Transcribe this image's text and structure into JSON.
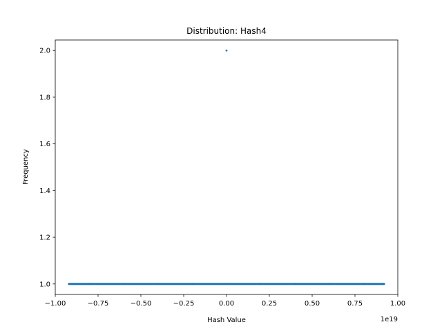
{
  "chart_data": {
    "type": "scatter",
    "title": "Distribution: Hash4",
    "xlabel": "Hash Value",
    "ylabel": "Frequency",
    "x_offset_label": "1e19",
    "xlim": [
      -1.0,
      1.0
    ],
    "ylim": [
      0.955,
      2.045
    ],
    "x_ticks": [
      -1.0,
      -0.75,
      -0.5,
      -0.25,
      0.0,
      0.25,
      0.5,
      0.75,
      1.0
    ],
    "x_tick_labels": [
      "−1.00",
      "−0.75",
      "−0.50",
      "−0.25",
      "0.00",
      "0.25",
      "0.50",
      "0.75",
      "1.00"
    ],
    "y_ticks": [
      1.0,
      1.2,
      1.4,
      1.6,
      1.8,
      2.0
    ],
    "y_tick_labels": [
      "1.0",
      "1.2",
      "1.4",
      "1.6",
      "1.8",
      "2.0"
    ],
    "grid": false,
    "legend": "none",
    "color": "#1f77b4",
    "series": [
      {
        "points": [
          {
            "x": -0.92,
            "y": 1.0
          },
          {
            "x": -0.8,
            "y": 1.0
          },
          {
            "x": -0.6,
            "y": 1.0
          },
          {
            "x": -0.4,
            "y": 1.0
          },
          {
            "x": -0.2,
            "y": 1.0
          },
          {
            "x": 0.0,
            "y": 1.0
          },
          {
            "x": 0.2,
            "y": 1.0
          },
          {
            "x": 0.4,
            "y": 1.0
          },
          {
            "x": 0.6,
            "y": 1.0
          },
          {
            "x": 0.8,
            "y": 1.0
          },
          {
            "x": 0.92,
            "y": 1.0
          },
          {
            "x": 0.0,
            "y": 2.0
          }
        ]
      }
    ]
  }
}
